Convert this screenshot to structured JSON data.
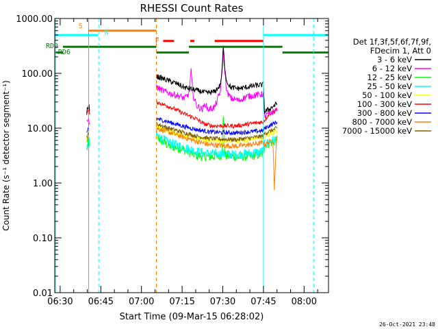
{
  "chart_data": {
    "type": "line",
    "title": "RHESSI Count Rates",
    "xlabel": "Start Time (09-Mar-15 06:28:02)",
    "ylabel": "Count Rate (s⁻¹ detector segment⁻¹)",
    "yscale": "log",
    "ylim": [
      0.01,
      1000
    ],
    "xlim_minutes": [
      388,
      489
    ],
    "y_ticks": [
      {
        "value": 0.01,
        "label": "0.01"
      },
      {
        "value": 0.1,
        "label": "0.10"
      },
      {
        "value": 1,
        "label": "1.00"
      },
      {
        "value": 10,
        "label": "10.00"
      },
      {
        "value": 100,
        "label": "100.00"
      },
      {
        "value": 1000,
        "label": "1000.00"
      }
    ],
    "x_ticks": [
      {
        "value": 390,
        "label": "06:30"
      },
      {
        "value": 405,
        "label": "06:45"
      },
      {
        "value": 420,
        "label": "07:00"
      },
      {
        "value": 435,
        "label": "07:15"
      },
      {
        "value": 450,
        "label": "07:30"
      },
      {
        "value": 465,
        "label": "07:45"
      },
      {
        "value": 480,
        "label": "08:00"
      }
    ],
    "legend_header": [
      "Det 1f,3f,5f,6f,7f,9f,",
      "FDecim 1, Att 0"
    ],
    "series": [
      {
        "name": "3 - 6 keV",
        "color": "#000000",
        "noise": 0.05,
        "points": [
          [
            399.8,
            20
          ],
          [
            400.5,
            25
          ],
          [
            401,
            22
          ],
          [
            425.5,
            88
          ],
          [
            428,
            80
          ],
          [
            431,
            70
          ],
          [
            433,
            65
          ],
          [
            436,
            55
          ],
          [
            438,
            52
          ],
          [
            441,
            48
          ],
          [
            444,
            44
          ],
          [
            447,
            46
          ],
          [
            449,
            60
          ],
          [
            449.6,
            95
          ],
          [
            450.2,
            300
          ],
          [
            450.8,
            120
          ],
          [
            451.5,
            70
          ],
          [
            453,
            55
          ],
          [
            456,
            53
          ],
          [
            459,
            56
          ],
          [
            462,
            60
          ],
          [
            465,
            62
          ],
          [
            465.4,
            20
          ],
          [
            467,
            22
          ],
          [
            470,
            28
          ]
        ]
      },
      {
        "name": "6 - 12 keV",
        "color": "#ff00ff",
        "noise": 0.06,
        "points": [
          [
            399.8,
            12
          ],
          [
            400.5,
            15
          ],
          [
            401,
            12
          ],
          [
            425.5,
            56
          ],
          [
            428,
            48
          ],
          [
            431,
            42
          ],
          [
            433,
            40
          ],
          [
            436,
            35
          ],
          [
            437.5,
            42
          ],
          [
            438.3,
            110
          ],
          [
            439,
            40
          ],
          [
            440.5,
            25
          ],
          [
            442.5,
            22
          ],
          [
            443.5,
            28
          ],
          [
            444.5,
            22
          ],
          [
            447,
            24
          ],
          [
            449,
            45
          ],
          [
            449.6,
            85
          ],
          [
            450.2,
            250
          ],
          [
            450.8,
            100
          ],
          [
            451.5,
            45
          ],
          [
            453,
            35
          ],
          [
            456,
            32
          ],
          [
            459,
            38
          ],
          [
            462,
            40
          ],
          [
            465,
            42
          ],
          [
            465.4,
            17
          ],
          [
            467,
            18
          ],
          [
            470,
            22
          ]
        ]
      },
      {
        "name": "12 - 25 keV",
        "color": "#00ff00",
        "noise": 0.09,
        "points": [
          [
            399.8,
            4
          ],
          [
            400.5,
            6
          ],
          [
            401,
            5
          ],
          [
            425.5,
            7
          ],
          [
            430,
            4.8
          ],
          [
            435,
            4.2
          ],
          [
            440,
            3.2
          ],
          [
            445,
            3.0
          ],
          [
            449.5,
            3.2
          ],
          [
            450.2,
            15
          ],
          [
            450.8,
            3.2
          ],
          [
            455,
            3.0
          ],
          [
            460,
            3.1
          ],
          [
            465,
            3.4
          ],
          [
            465.4,
            5
          ],
          [
            470,
            6
          ]
        ]
      },
      {
        "name": "25 - 50 keV",
        "color": "#00ffff",
        "noise": 0.09,
        "points": [
          [
            399.8,
            4
          ],
          [
            400.5,
            6
          ],
          [
            401,
            5
          ],
          [
            425.5,
            7.5
          ],
          [
            430,
            5.5
          ],
          [
            435,
            4.6
          ],
          [
            440,
            3.8
          ],
          [
            445,
            3.4
          ],
          [
            450,
            3.4
          ],
          [
            455,
            3.3
          ],
          [
            460,
            3.5
          ],
          [
            465,
            3.8
          ],
          [
            465.4,
            5
          ],
          [
            470,
            6.5
          ]
        ]
      },
      {
        "name": "50 - 100 keV",
        "color": "#ffff00",
        "noise": 0.05,
        "points": [
          [
            399.8,
            6
          ],
          [
            400.5,
            8
          ],
          [
            425.5,
            10.5
          ],
          [
            430,
            8.5
          ],
          [
            435,
            7.5
          ],
          [
            440,
            6.5
          ],
          [
            445,
            6
          ],
          [
            450,
            6
          ],
          [
            455,
            6
          ],
          [
            460,
            6.3
          ],
          [
            465,
            7
          ],
          [
            465.4,
            7
          ],
          [
            470,
            9
          ]
        ]
      },
      {
        "name": "100 - 300 keV",
        "color": "#ff0000",
        "noise": 0.04,
        "points": [
          [
            399.8,
            18
          ],
          [
            400.5,
            22
          ],
          [
            401,
            18
          ],
          [
            425.5,
            30
          ],
          [
            428,
            27
          ],
          [
            431,
            24
          ],
          [
            435,
            19
          ],
          [
            440,
            15
          ],
          [
            443,
            12
          ],
          [
            446,
            11
          ],
          [
            450,
            11
          ],
          [
            455,
            11
          ],
          [
            460,
            12
          ],
          [
            465,
            13
          ],
          [
            465.4,
            14
          ],
          [
            467,
            18
          ],
          [
            470,
            22
          ]
        ]
      },
      {
        "name": "300 - 800 keV",
        "color": "#0000ff",
        "noise": 0.04,
        "points": [
          [
            399.8,
            8
          ],
          [
            400.5,
            11
          ],
          [
            425.5,
            15
          ],
          [
            430,
            13
          ],
          [
            435,
            11
          ],
          [
            440,
            9.5
          ],
          [
            445,
            8.6
          ],
          [
            450,
            8.3
          ],
          [
            455,
            8.2
          ],
          [
            460,
            8.6
          ],
          [
            465,
            9
          ],
          [
            465.4,
            10
          ],
          [
            470,
            13
          ]
        ]
      },
      {
        "name": "800 - 7000 keV",
        "color": "#ff8000",
        "noise": 0.05,
        "points": [
          [
            399.8,
            6
          ],
          [
            400.5,
            8
          ],
          [
            425.5,
            10
          ],
          [
            430,
            8.5
          ],
          [
            435,
            7
          ],
          [
            440,
            5.8
          ],
          [
            445,
            5
          ],
          [
            450,
            4.8
          ],
          [
            455,
            4.7
          ],
          [
            460,
            5
          ],
          [
            465,
            5.4
          ],
          [
            465.4,
            5
          ],
          [
            468.5,
            6
          ],
          [
            469,
            0.8
          ],
          [
            469.5,
            3
          ],
          [
            470,
            7
          ]
        ]
      },
      {
        "name": "7000 - 15000 keV",
        "color": "#806000",
        "noise": 0.04,
        "points": [
          [
            399.8,
            7
          ],
          [
            400.5,
            9
          ],
          [
            425.5,
            12
          ],
          [
            430,
            10
          ],
          [
            435,
            8.5
          ],
          [
            440,
            7.2
          ],
          [
            445,
            6.5
          ],
          [
            450,
            6.3
          ],
          [
            455,
            6.2
          ],
          [
            460,
            6.6
          ],
          [
            465,
            7.2
          ],
          [
            465.4,
            8
          ],
          [
            470,
            10
          ]
        ]
      }
    ],
    "state_bars": [
      {
        "label": "S",
        "color": "#ff8000",
        "x0": 400.5,
        "x1": 425.5,
        "value": 600
      },
      {
        "label": "N",
        "color": "#00ffff",
        "x0": 388,
        "x1": 404,
        "value": 500
      },
      {
        "label": "N",
        "color": "#00ffff",
        "x0": 465,
        "x1": 489,
        "value": 500
      },
      {
        "label": "F",
        "color": "#ff0000",
        "x0": 428,
        "x1": 432,
        "value": 390
      },
      {
        "label": "F",
        "color": "#ff0000",
        "x0": 438,
        "x1": 439.5,
        "value": 390
      },
      {
        "label": "F",
        "color": "#ff0000",
        "x0": 447,
        "x1": 465,
        "value": 390
      },
      {
        "label": "RD0",
        "color": "#008000",
        "x0": 391,
        "x1": 425.5,
        "value": 305
      },
      {
        "label": "RD0",
        "color": "#008000",
        "x0": 437.5,
        "x1": 472,
        "value": 305
      },
      {
        "label": "RD6",
        "color": "#008000",
        "x0": 388,
        "x1": 391,
        "value": 240
      },
      {
        "label": "RD6",
        "color": "#008000",
        "x0": 425.5,
        "x1": 437.5,
        "value": 240
      },
      {
        "label": "RD6",
        "color": "#008000",
        "x0": 472,
        "x1": 489,
        "value": 240
      }
    ],
    "bar_labels": [
      {
        "text": "S",
        "color": "#ff8000",
        "x": 397.5,
        "value": 750
      },
      {
        "text": "N",
        "color": "#00ffff",
        "x": 407,
        "value": 570
      },
      {
        "text": "F",
        "color": "#ff0000",
        "x": 425.8,
        "value": 410
      },
      {
        "text": "RD0",
        "color": "#008000",
        "x": 387,
        "value": 325
      },
      {
        "text": "RD6",
        "color": "#008000",
        "x": 391.5,
        "value": 250
      }
    ],
    "vlines": [
      {
        "x": 388.3,
        "color": "#00ffff",
        "dash": false
      },
      {
        "x": 400.5,
        "color": "#ff8000",
        "dash": false
      },
      {
        "x": 404.2,
        "color": "#00ffff",
        "dash": true
      },
      {
        "x": 425.5,
        "color": "#ff8000",
        "dash": true
      },
      {
        "x": 465.0,
        "color": "#00ffff",
        "dash": false
      },
      {
        "x": 483.5,
        "color": "#00ffff",
        "dash": true
      }
    ],
    "footer_date": "26-Oct-2021 23:48"
  }
}
